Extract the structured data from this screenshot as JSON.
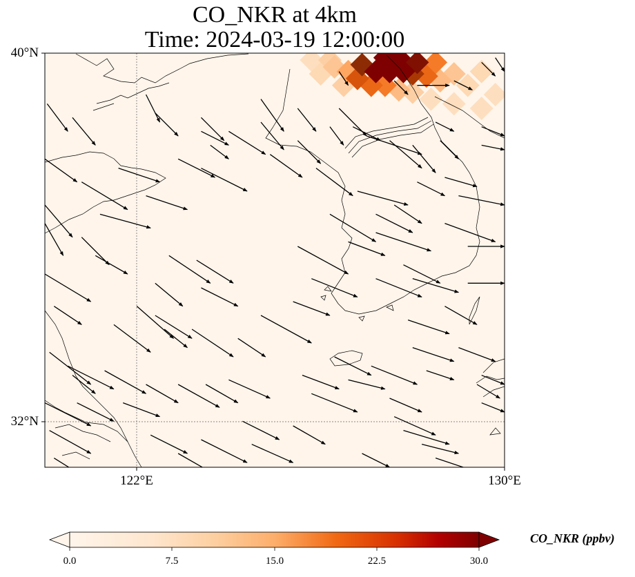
{
  "title": {
    "line1": "CO_NKR at 4km",
    "line2": "Time: 2024-03-19 12:00:00"
  },
  "axes": {
    "lat_ticks": [
      {
        "label": "40°N",
        "value": 40
      },
      {
        "label": "32°N",
        "value": 32
      }
    ],
    "lon_ticks": [
      {
        "label": "122°E",
        "value": 122
      },
      {
        "label": "130°E",
        "value": 130
      }
    ],
    "lon_range": [
      120,
      130
    ],
    "lat_range": [
      31,
      40
    ]
  },
  "colorbar": {
    "label": "CO_NKR (ppbv)",
    "ticks": [
      "0.0",
      "7.5",
      "15.0",
      "22.5",
      "30.0"
    ],
    "range": [
      0,
      30
    ],
    "extend": "both",
    "colors": [
      "#fff5eb",
      "#fdd9b4",
      "#fda762",
      "#f3701b",
      "#c54102",
      "#7f2704",
      "#7f0000"
    ]
  },
  "plume": {
    "peak_value": 30,
    "cells": [
      {
        "lon": 127.2,
        "lat": 39.6,
        "v": 30
      },
      {
        "lon": 127.5,
        "lat": 39.6,
        "v": 30
      },
      {
        "lon": 127.8,
        "lat": 39.6,
        "v": 30
      },
      {
        "lon": 128.1,
        "lat": 39.8,
        "v": 28
      },
      {
        "lon": 127.4,
        "lat": 39.9,
        "v": 30
      },
      {
        "lon": 127.7,
        "lat": 39.9,
        "v": 30
      },
      {
        "lon": 128.0,
        "lat": 39.55,
        "v": 22
      },
      {
        "lon": 126.9,
        "lat": 39.75,
        "v": 24
      },
      {
        "lon": 126.8,
        "lat": 39.45,
        "v": 18
      },
      {
        "lon": 127.1,
        "lat": 39.3,
        "v": 16
      },
      {
        "lon": 127.4,
        "lat": 39.3,
        "v": 14
      },
      {
        "lon": 128.3,
        "lat": 39.5,
        "v": 16
      },
      {
        "lon": 128.5,
        "lat": 39.8,
        "v": 14
      },
      {
        "lon": 126.6,
        "lat": 39.6,
        "v": 10
      },
      {
        "lon": 126.3,
        "lat": 39.7,
        "v": 7
      },
      {
        "lon": 126.0,
        "lat": 39.55,
        "v": 5
      },
      {
        "lon": 126.5,
        "lat": 39.3,
        "v": 6
      },
      {
        "lon": 127.7,
        "lat": 39.2,
        "v": 8
      },
      {
        "lon": 128.0,
        "lat": 39.15,
        "v": 6
      },
      {
        "lon": 128.6,
        "lat": 39.4,
        "v": 8
      },
      {
        "lon": 128.9,
        "lat": 39.55,
        "v": 7
      },
      {
        "lon": 129.2,
        "lat": 39.3,
        "v": 5
      },
      {
        "lon": 129.5,
        "lat": 39.6,
        "v": 5
      },
      {
        "lon": 128.4,
        "lat": 39.0,
        "v": 4
      },
      {
        "lon": 128.9,
        "lat": 38.9,
        "v": 4
      },
      {
        "lon": 129.5,
        "lat": 38.8,
        "v": 4
      },
      {
        "lon": 129.8,
        "lat": 39.1,
        "v": 4
      },
      {
        "lon": 126.2,
        "lat": 39.85,
        "v": 6
      },
      {
        "lon": 125.8,
        "lat": 39.85,
        "v": 4
      }
    ]
  },
  "wind_vectors": [
    [
      120.05,
      38.9,
      120.5,
      38.3
    ],
    [
      120.6,
      38.6,
      121.1,
      38.0
    ],
    [
      120.0,
      37.7,
      120.7,
      37.2
    ],
    [
      120.8,
      37.2,
      121.8,
      36.6
    ],
    [
      121.2,
      36.5,
      122.3,
      36.2
    ],
    [
      121.6,
      37.5,
      122.5,
      37.2
    ],
    [
      122.2,
      36.9,
      123.1,
      36.6
    ],
    [
      120.0,
      36.7,
      120.6,
      36.0
    ],
    [
      120.0,
      36.3,
      120.4,
      35.6
    ],
    [
      120.8,
      36.0,
      121.4,
      35.4
    ],
    [
      121.1,
      35.6,
      121.8,
      35.2
    ],
    [
      120.0,
      35.2,
      121.0,
      34.6
    ],
    [
      120.2,
      34.5,
      120.8,
      34.1
    ],
    [
      120.1,
      33.5,
      121.0,
      32.8
    ],
    [
      120.0,
      32.4,
      121.0,
      31.9
    ],
    [
      120.1,
      31.8,
      121.0,
      31.3
    ],
    [
      120.2,
      31.2,
      121.0,
      30.7
    ],
    [
      120.7,
      32.4,
      121.5,
      32.0
    ],
    [
      121.3,
      33.1,
      122.2,
      32.6
    ],
    [
      121.7,
      32.4,
      122.5,
      32.1
    ],
    [
      122.3,
      31.7,
      123.1,
      31.3
    ],
    [
      122.0,
      34.5,
      122.8,
      33.8
    ],
    [
      122.6,
      34.0,
      123.1,
      33.6
    ],
    [
      122.4,
      35.0,
      123.0,
      34.5
    ],
    [
      122.7,
      35.6,
      123.6,
      35.0
    ],
    [
      123.3,
      35.5,
      124.1,
      35.0
    ],
    [
      123.4,
      34.9,
      124.2,
      34.5
    ],
    [
      123.2,
      34.0,
      124.1,
      33.4
    ],
    [
      123.5,
      32.8,
      124.2,
      32.4
    ],
    [
      124.2,
      33.8,
      124.8,
      33.4
    ],
    [
      124.0,
      32.9,
      124.9,
      32.5
    ],
    [
      124.7,
      34.3,
      125.8,
      33.7
    ],
    [
      125.4,
      34.6,
      126.2,
      34.3
    ],
    [
      125.8,
      35.1,
      126.8,
      34.7
    ],
    [
      125.5,
      35.8,
      126.6,
      35.2
    ],
    [
      126.2,
      36.5,
      127.2,
      35.9
    ],
    [
      126.6,
      35.9,
      127.4,
      35.6
    ],
    [
      127.2,
      36.1,
      128.4,
      35.7
    ],
    [
      127.2,
      35.1,
      128.2,
      34.7
    ],
    [
      127.8,
      35.4,
      128.6,
      35.0
    ],
    [
      128.0,
      35.1,
      129.0,
      34.8
    ],
    [
      128.7,
      36.3,
      129.8,
      35.9
    ],
    [
      129.2,
      35.0,
      130.0,
      35.0
    ],
    [
      129.2,
      35.8,
      130.0,
      35.8
    ],
    [
      129.0,
      36.9,
      130.0,
      36.7
    ],
    [
      128.7,
      37.3,
      129.4,
      37.1
    ],
    [
      127.6,
      36.7,
      128.2,
      36.3
    ],
    [
      126.8,
      37.0,
      127.9,
      36.7
    ],
    [
      125.9,
      37.5,
      126.7,
      36.9
    ],
    [
      125.5,
      38.1,
      126.0,
      37.6
    ],
    [
      124.9,
      37.8,
      125.6,
      37.3
    ],
    [
      124.7,
      38.5,
      125.2,
      37.9
    ],
    [
      124.0,
      38.3,
      124.8,
      37.8
    ],
    [
      123.4,
      37.5,
      124.4,
      37.0
    ],
    [
      122.9,
      37.7,
      123.7,
      37.3
    ],
    [
      123.6,
      38.0,
      124.0,
      37.7
    ],
    [
      123.4,
      38.3,
      124.0,
      38.0
    ],
    [
      123.4,
      38.6,
      123.9,
      38.1
    ],
    [
      122.2,
      39.1,
      122.5,
      38.5
    ],
    [
      122.4,
      38.7,
      122.9,
      38.2
    ],
    [
      124.7,
      39.0,
      125.2,
      38.3
    ],
    [
      125.5,
      38.8,
      125.9,
      38.3
    ],
    [
      126.2,
      38.4,
      126.5,
      38.0
    ],
    [
      126.7,
      38.4,
      127.3,
      38.1
    ],
    [
      127.0,
      38.2,
      128.2,
      37.8
    ],
    [
      127.5,
      38.1,
      128.2,
      37.5
    ],
    [
      128.0,
      38.0,
      128.5,
      37.4
    ],
    [
      128.6,
      38.1,
      129.0,
      37.7
    ],
    [
      128.1,
      37.2,
      128.7,
      36.9
    ],
    [
      127.2,
      36.5,
      128.0,
      36.1
    ],
    [
      126.4,
      38.8,
      127.0,
      38.2
    ],
    [
      126.4,
      39.6,
      126.6,
      39.3
    ],
    [
      127.6,
      39.4,
      127.9,
      39.1
    ],
    [
      128.1,
      39.3,
      128.8,
      39.3
    ],
    [
      128.9,
      39.4,
      129.3,
      39.2
    ],
    [
      129.5,
      39.8,
      129.8,
      39.5
    ],
    [
      129.8,
      39.9,
      130.0,
      39.6
    ],
    [
      128.5,
      38.5,
      128.9,
      38.3
    ],
    [
      129.5,
      38.4,
      130.0,
      38.2
    ],
    [
      129.5,
      38.0,
      130.0,
      37.9
    ],
    [
      127.1,
      33.2,
      128.1,
      32.8
    ],
    [
      127.5,
      32.5,
      128.2,
      32.2
    ],
    [
      127.8,
      31.8,
      128.8,
      31.5
    ],
    [
      128.2,
      31.5,
      129.0,
      31.3
    ],
    [
      127.6,
      32.1,
      128.5,
      31.7
    ],
    [
      128.0,
      33.6,
      128.9,
      33.3
    ],
    [
      128.3,
      33.1,
      128.9,
      32.9
    ],
    [
      127.9,
      34.2,
      128.8,
      33.9
    ],
    [
      128.7,
      34.5,
      129.4,
      34.1
    ],
    [
      129.0,
      33.6,
      129.8,
      33.3
    ],
    [
      129.4,
      32.8,
      129.9,
      32.5
    ],
    [
      129.5,
      32.4,
      130.0,
      32.2
    ],
    [
      129.5,
      33.0,
      130.0,
      32.8
    ],
    [
      126.3,
      33.4,
      127.1,
      33.0
    ],
    [
      126.6,
      32.9,
      127.4,
      32.7
    ],
    [
      125.8,
      32.6,
      126.8,
      32.2
    ],
    [
      125.4,
      31.9,
      126.1,
      31.5
    ],
    [
      124.3,
      32.0,
      125.1,
      31.6
    ],
    [
      123.4,
      31.6,
      124.4,
      31.1
    ],
    [
      125.6,
      33.0,
      126.4,
      32.7
    ],
    [
      124.5,
      31.5,
      125.4,
      31.1
    ],
    [
      126.9,
      31.3,
      127.5,
      31.0
    ],
    [
      128.5,
      31.2,
      129.4,
      30.9
    ],
    [
      122.2,
      32.8,
      122.9,
      32.4
    ],
    [
      122.9,
      32.8,
      123.8,
      32.3
    ],
    [
      122.4,
      34.3,
      123.2,
      33.8
    ],
    [
      121.5,
      34.1,
      122.3,
      33.5
    ],
    [
      120.5,
      33.2,
      121.5,
      32.7
    ],
    [
      120.6,
      33.0,
      121.1,
      32.6
    ],
    [
      121.2,
      30.9,
      121.9,
      30.4
    ],
    [
      122.0,
      31.0,
      122.7,
      30.7
    ],
    [
      122.9,
      31.3,
      123.6,
      30.9
    ],
    [
      123.1,
      30.9,
      123.8,
      30.6
    ]
  ]
}
